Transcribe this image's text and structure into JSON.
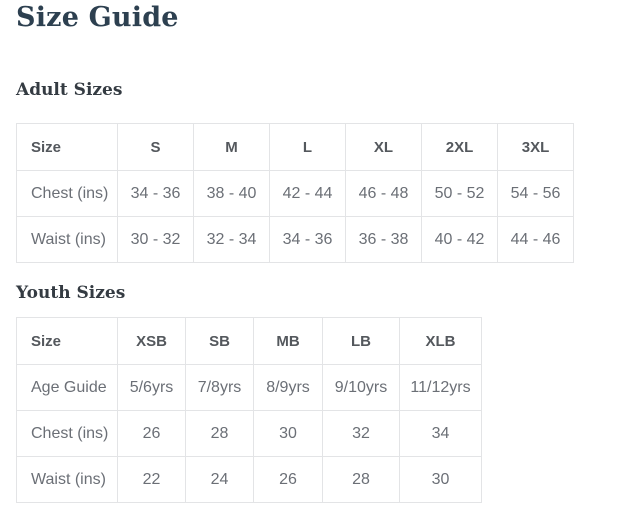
{
  "page": {
    "title": "Size Guide"
  },
  "sections": [
    {
      "heading": "Adult Sizes",
      "table": {
        "header": [
          "Size",
          "S",
          "M",
          "L",
          "XL",
          "2XL",
          "3XL"
        ],
        "rows": [
          {
            "label": "Chest (ins)",
            "values": [
              "34 - 36",
              "38 - 40",
              "42 - 44",
              "46 - 48",
              "50 - 52",
              "54 - 56"
            ]
          },
          {
            "label": "Waist (ins)",
            "values": [
              "30 - 32",
              "32 - 34",
              "34 - 36",
              "36 - 38",
              "40 - 42",
              "44 - 46"
            ]
          }
        ]
      }
    },
    {
      "heading": "Youth Sizes",
      "table": {
        "header": [
          "Size",
          "XSB",
          "SB",
          "MB",
          "LB",
          "XLB"
        ],
        "rows": [
          {
            "label": "Age Guide",
            "values": [
              "5/6yrs",
              "7/8yrs",
              "8/9yrs",
              "9/10yrs",
              "11/12yrs"
            ]
          },
          {
            "label": "Chest (ins)",
            "values": [
              "26",
              "28",
              "30",
              "32",
              "34"
            ]
          },
          {
            "label": "Waist (ins)",
            "values": [
              "22",
              "24",
              "26",
              "28",
              "30"
            ]
          }
        ]
      }
    }
  ],
  "colors": {
    "background": "#ffffff",
    "title_text": "#2d4050",
    "heading_text": "#343b42",
    "table_header_text": "#54585d",
    "cell_text": "#6b6f76",
    "table_border": "#e3e4e6"
  }
}
